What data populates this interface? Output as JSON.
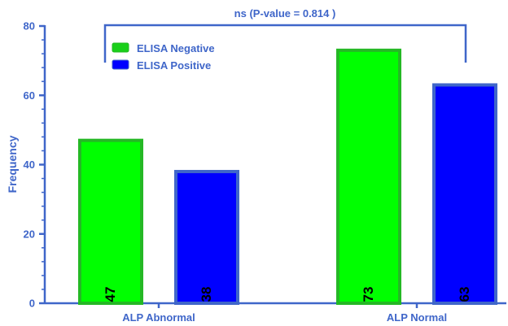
{
  "chart_data": {
    "type": "bar",
    "title": "",
    "xlabel": "",
    "ylabel": "Frequency",
    "ylim": [
      0,
      80
    ],
    "yticks": [
      0,
      20,
      40,
      60,
      80
    ],
    "categories": [
      "ALP Abnormal",
      "ALP Normal"
    ],
    "series": [
      {
        "name": "ELISA Negative",
        "values": [
          47,
          73
        ],
        "fill": "#00ff00",
        "stroke": "#25b825"
      },
      {
        "name": "ELISA Positive",
        "values": [
          38,
          63
        ],
        "fill": "#0000ff",
        "stroke": "#3f66c9"
      }
    ],
    "data_labels": [
      "47",
      "73",
      "38",
      "63"
    ],
    "legend_position": "top-left",
    "grid": false,
    "annotation": "ns (P-value = 0.814 )",
    "axis_color": "#3f66c9"
  }
}
